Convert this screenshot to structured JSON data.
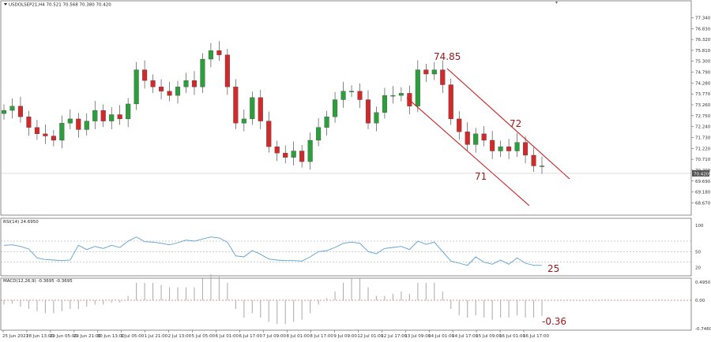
{
  "header": {
    "symbol_line": "USDOLSEP21,H4  70.521 70.568 70.380 70.420",
    "rsi_line": "RSI(14) 24.6950",
    "macd_line": "MACD(12,26,9) -0.3695 -0.3695"
  },
  "current_price_label": "70.420",
  "annotations": {
    "high": "74.85",
    "upper": "72",
    "lower": "71",
    "rsi": "25",
    "macd": "-0.36"
  },
  "colors": {
    "bull": "#2e9e3c",
    "bear": "#d12a2a",
    "channel": "#c81e1e",
    "rsi": "#5aa0d0",
    "macd": "#b0b0b0",
    "signal": "#c81e1e",
    "annotation": "#a01818"
  },
  "chart_data": [
    {
      "type": "candlestick",
      "ylim": [
        68.5,
        77.8
      ],
      "y_ticks": [
        "77.340",
        "76.830",
        "76.320",
        "75.810",
        "75.300",
        "74.790",
        "74.280",
        "73.770",
        "73.260",
        "72.750",
        "72.240",
        "71.730",
        "71.220",
        "70.710",
        "70.200",
        "69.690",
        "69.180",
        "68.670"
      ],
      "x_ticks": [
        "25 Jun 2021",
        "28 Jun 13:00",
        "29 Jun 05:00",
        "29 Jun 21:00",
        "30 Jun 13:00",
        "1 Jul 05:00",
        "1 Jul 21:00",
        "2 Jul 13:00",
        "5 Jul 05:00",
        "6 Jul 01:00",
        "6 Jul 17:00",
        "7 Jul 09:00",
        "8 Jul 01:00",
        "8 Jul 17:00",
        "9 Jul 09:00",
        "12 Jul 01:00",
        "12 Jul 17:00",
        "13 Jul 09:00",
        "14 Jul 01:00",
        "14 Jul 17:00",
        "15 Jul 09:00",
        "16 Jul 01:00",
        "16 Jul 17:00"
      ],
      "close": [
        73.0,
        73.2,
        72.7,
        72.2,
        71.9,
        71.8,
        71.6,
        72.4,
        72.6,
        72.1,
        72.5,
        73.0,
        72.5,
        72.8,
        72.6,
        73.3,
        74.9,
        74.4,
        74.1,
        73.9,
        73.7,
        74.1,
        74.4,
        74.1,
        75.4,
        75.8,
        75.6,
        74.1,
        72.4,
        72.6,
        73.6,
        72.5,
        71.3,
        71.0,
        70.8,
        71.1,
        70.6,
        71.6,
        72.2,
        72.7,
        73.5,
        73.9,
        73.9,
        73.5,
        72.4,
        72.9,
        73.7,
        73.7,
        73.8,
        73.2,
        74.9,
        74.7,
        74.9,
        74.2,
        72.6,
        72.0,
        71.4,
        71.9,
        71.6,
        71.1,
        71.3,
        71.1,
        71.5,
        70.9,
        70.4,
        70.4
      ],
      "rsi": [
        62,
        63,
        60,
        55,
        38,
        35,
        34,
        33,
        34,
        62,
        54,
        60,
        56,
        62,
        58,
        70,
        78,
        69,
        68,
        66,
        63,
        67,
        72,
        70,
        74,
        78,
        76,
        68,
        42,
        40,
        52,
        45,
        36,
        34,
        33,
        33,
        32,
        40,
        50,
        52,
        58,
        66,
        68,
        66,
        50,
        46,
        56,
        58,
        60,
        54,
        70,
        64,
        68,
        50,
        32,
        28,
        24,
        40,
        30,
        26,
        34,
        26,
        38,
        28,
        24,
        24
      ],
      "macd": [
        -0.1,
        -0.08,
        -0.15,
        -0.2,
        -0.25,
        -0.3,
        -0.3,
        -0.25,
        -0.2,
        -0.2,
        -0.15,
        -0.1,
        -0.1,
        -0.05,
        -0.05,
        0.1,
        0.4,
        0.4,
        0.4,
        0.35,
        0.3,
        0.3,
        0.3,
        0.3,
        0.5,
        0.6,
        0.55,
        0.4,
        -0.2,
        -0.4,
        -0.3,
        -0.4,
        -0.5,
        -0.55,
        -0.55,
        -0.5,
        -0.45,
        -0.3,
        -0.1,
        0.05,
        0.2,
        0.4,
        0.5,
        0.5,
        0.3,
        0.1,
        0.1,
        0.15,
        0.2,
        0.15,
        0.4,
        0.4,
        0.4,
        0.2,
        -0.2,
        -0.35,
        -0.4,
        -0.35,
        -0.4,
        -0.45,
        -0.4,
        -0.4,
        -0.35,
        -0.4,
        -0.4,
        -0.36
      ],
      "rsi_levels": [
        30,
        50,
        70
      ],
      "rsi_ticks": [
        "100",
        "50",
        "20"
      ],
      "macd_ticks": [
        "0.4950",
        "0.00",
        "-0.7460"
      ]
    }
  ]
}
